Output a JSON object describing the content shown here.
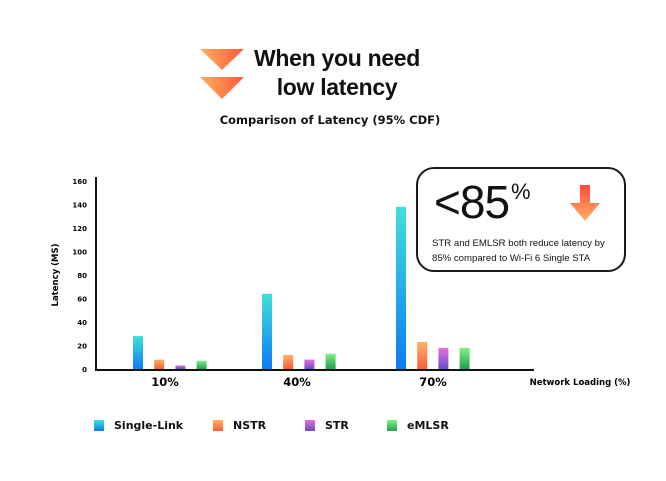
{
  "header": {
    "headline_lines": [
      "When you need",
      "low latency"
    ],
    "headline_icon": "double-chevron-down-icon"
  },
  "callout": {
    "value": "<85",
    "unit": "%",
    "icon": "arrow-down-icon",
    "text": "STR and EMLSR both reduce latency by 85% compared to Wi-Fi 6 Single STA"
  },
  "chart_data": {
    "type": "bar",
    "title": "Comparison of Latency (95% CDF)",
    "xlabel": "Network Loading (%)",
    "ylabel": "Latency (MS)",
    "ylim": [
      0,
      160
    ],
    "yticks": [
      0,
      20,
      40,
      60,
      80,
      100,
      120,
      140,
      160
    ],
    "categories": [
      "10%",
      "40%",
      "70%"
    ],
    "grid": false,
    "legend_position": "bottom",
    "series": [
      {
        "name": "Single-Link",
        "values": [
          28,
          64,
          138
        ],
        "color_top": "#40e0d8",
        "color_bottom": "#0a7cf7"
      },
      {
        "name": "NSTR",
        "values": [
          8,
          12,
          23
        ],
        "color_top": "#ffb264",
        "color_bottom": "#ff5a3c"
      },
      {
        "name": "STR",
        "values": [
          3,
          8,
          18
        ],
        "color_top": "#e472dc",
        "color_bottom": "#6a4cc8"
      },
      {
        "name": "eMLSR",
        "values": [
          7,
          13,
          18
        ],
        "color_top": "#84f084",
        "color_bottom": "#1fa052"
      }
    ]
  }
}
